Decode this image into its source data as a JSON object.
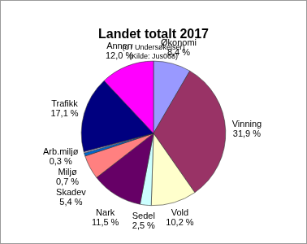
{
  "chart_data": {
    "type": "pie",
    "title": "Landet totalt 2017",
    "subtitle": [
      "(u / Undersøkelser)",
      "(Kilde: Jus068)"
    ],
    "categories": [
      "Økonomi",
      "Vinning",
      "Vold",
      "Sedel",
      "Nark",
      "Skadev",
      "Miljø",
      "Arb.miljø",
      "Trafikk",
      "Annen"
    ],
    "values": [
      8.4,
      31.9,
      10.2,
      2.5,
      11.5,
      5.4,
      0.7,
      0.3,
      17.1,
      12.0
    ],
    "value_labels": [
      "8,4 %",
      "31,9 %",
      "10,2 %",
      "2,5 %",
      "11,5 %",
      "5,4 %",
      "0,7 %",
      "0,3 %",
      "17,1 %",
      "12,0 %"
    ],
    "colors": [
      "#9999ff",
      "#993366",
      "#ffffcc",
      "#ccffff",
      "#660066",
      "#ff8080",
      "#0066cc",
      "#ccccff",
      "#000080",
      "#ff00ff"
    ],
    "data_labels": true
  }
}
